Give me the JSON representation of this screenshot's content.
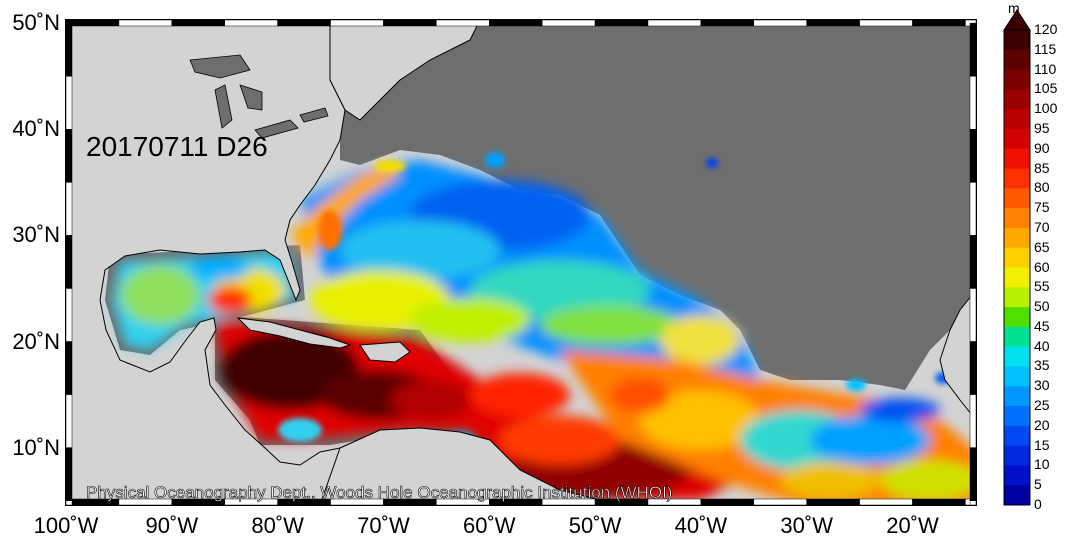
{
  "map": {
    "date_label": "20170711 D26",
    "credit": "Physical Oceanography Dept., Woods Hole Oceanographic Institution (WHOI)",
    "lat_labels": [
      "50˚N",
      "40˚N",
      "30˚N",
      "20˚N",
      "10˚N"
    ],
    "lon_labels": [
      "100˚W",
      "90˚W",
      "80˚W",
      "70˚W",
      "60˚W",
      "50˚W",
      "40˚W",
      "30˚W",
      "20˚W"
    ],
    "land_color": "#d3d3d3",
    "nodata_color": "#6e6e6e"
  },
  "colorbar": {
    "unit": "m",
    "labels": [
      "120",
      "115",
      "110",
      "105",
      "100",
      "95",
      "90",
      "85",
      "80",
      "75",
      "70",
      "65",
      "60",
      "55",
      "50",
      "45",
      "40",
      "35",
      "30",
      "25",
      "20",
      "15",
      "10",
      "5",
      "0"
    ],
    "colors": [
      "#3a0000",
      "#5c0000",
      "#7a0000",
      "#9a0000",
      "#b80000",
      "#d40000",
      "#ee1000",
      "#ff3000",
      "#ff5a00",
      "#ff8200",
      "#ffa800",
      "#ffd000",
      "#f0f000",
      "#b8f000",
      "#50e000",
      "#00e090",
      "#00e0f0",
      "#00c0ff",
      "#0098ff",
      "#0070ff",
      "#0048f0",
      "#0028e0",
      "#0010c8",
      "#0000a0"
    ]
  }
}
